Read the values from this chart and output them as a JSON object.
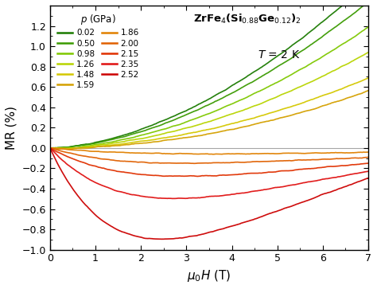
{
  "title": "ZrFe$_4$(Si$_{0.88}$Ge$_{0.12}$)$_2$",
  "temp_label": "T = 2 K",
  "xlabel": "$\\mu_0H$ (T)",
  "ylabel": "MR (%)",
  "legend_title": "p (GPa)",
  "xlim": [
    0,
    7
  ],
  "ylim": [
    -1.0,
    1.4
  ],
  "yticks": [
    -1.0,
    -0.8,
    -0.6,
    -0.4,
    -0.2,
    0.0,
    0.2,
    0.4,
    0.6,
    0.8,
    1.0,
    1.2
  ],
  "xticks": [
    0,
    1,
    2,
    3,
    4,
    5,
    6,
    7
  ],
  "pressures": [
    0.02,
    0.5,
    0.98,
    1.26,
    1.48,
    1.59,
    1.86,
    2.0,
    2.15,
    2.35,
    2.52
  ],
  "colors": [
    "#1a7a00",
    "#3a9a00",
    "#7fc800",
    "#b8d400",
    "#d4c800",
    "#d4a000",
    "#e08000",
    "#e06000",
    "#e03000",
    "#e01010",
    "#cc0000"
  ],
  "background": "#f0f0f0"
}
